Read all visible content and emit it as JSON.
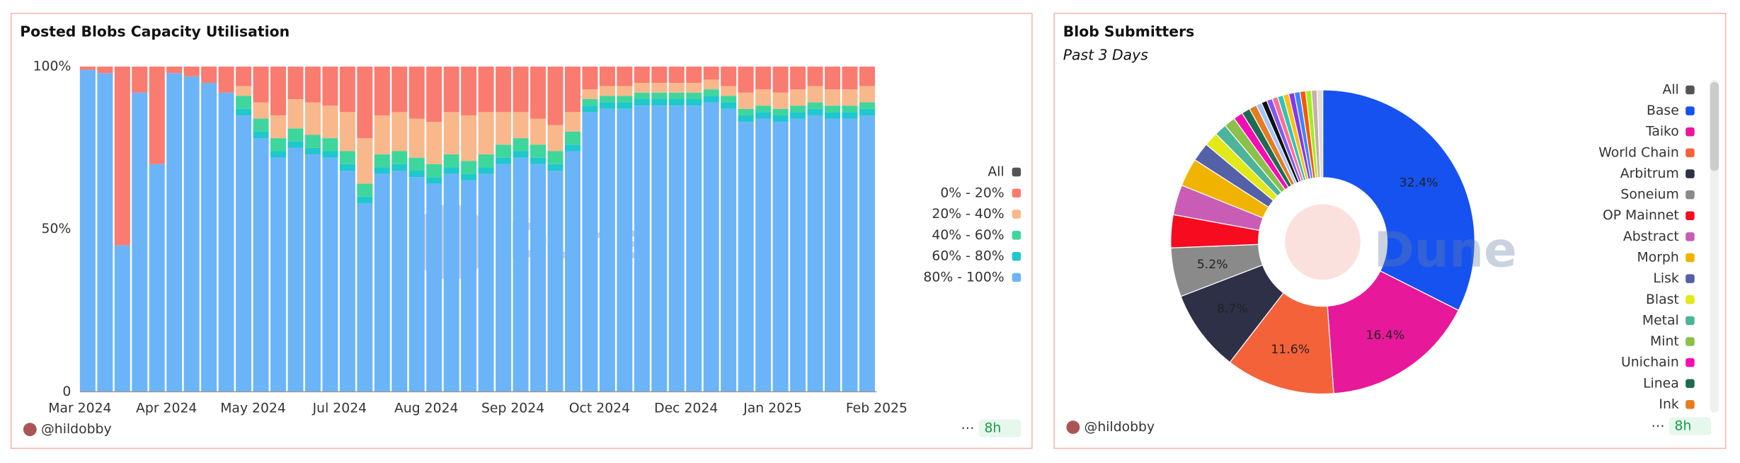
{
  "chart_data": [
    {
      "type": "bar",
      "stacked": true,
      "title": "Posted Blobs Capacity Utilisation",
      "watermark": "Dune",
      "author": "@hildobby",
      "refresh": "8h",
      "legend_all_label": "All",
      "legend_all_color": "#555555",
      "categories": [
        "Mar 2024",
        null,
        null,
        null,
        null,
        "Apr 2024",
        null,
        null,
        null,
        null,
        "May 2024",
        null,
        null,
        null,
        null,
        "Jul 2024",
        null,
        null,
        null,
        null,
        "Aug 2024",
        null,
        null,
        null,
        null,
        "Sep 2024",
        null,
        null,
        null,
        null,
        "Oct 2024",
        null,
        null,
        null,
        null,
        "Dec 2024",
        null,
        null,
        null,
        null,
        "Jan 2025",
        null,
        null,
        null,
        null,
        "Feb 2025"
      ],
      "ylim": [
        0,
        100
      ],
      "yticks": [
        0,
        {
          "value": 50,
          "label": "50%"
        },
        {
          "value": 100,
          "label": "100%"
        }
      ],
      "series": [
        {
          "name": "80% - 100%",
          "color": "#6cb4f8",
          "values": [
            99,
            98,
            45,
            92,
            70,
            98,
            97,
            95,
            92,
            85,
            78,
            72,
            75,
            73,
            72,
            68,
            58,
            67,
            68,
            66,
            64,
            67,
            65,
            67,
            70,
            72,
            70,
            68,
            74,
            86,
            87,
            87,
            88,
            88,
            88,
            88,
            89,
            87,
            83,
            84,
            83,
            84,
            85,
            84,
            84,
            85
          ]
        },
        {
          "name": "60% - 80%",
          "color": "#1fc8cc",
          "values": [
            0,
            0,
            0,
            0,
            0,
            0,
            0,
            0,
            0,
            2,
            2,
            2,
            2,
            2,
            2,
            2,
            2,
            2,
            2,
            2,
            2,
            2,
            2,
            2,
            2,
            2,
            2,
            2,
            2,
            2,
            2,
            2,
            2,
            2,
            2,
            2,
            2,
            2,
            2,
            2,
            2,
            2,
            2,
            2,
            2,
            2
          ]
        },
        {
          "name": "40% - 60%",
          "color": "#3fd69c",
          "values": [
            0,
            0,
            0,
            0,
            0,
            0,
            0,
            0,
            0,
            4,
            4,
            4,
            4,
            4,
            4,
            4,
            4,
            4,
            4,
            4,
            4,
            4,
            4,
            4,
            4,
            4,
            4,
            4,
            4,
            2,
            2,
            2,
            2,
            2,
            2,
            2,
            2,
            2,
            2,
            2,
            2,
            2,
            2,
            2,
            2,
            2
          ]
        },
        {
          "name": "20% - 40%",
          "color": "#f8b88c",
          "values": [
            0,
            0,
            0,
            0,
            0,
            0,
            0,
            0,
            0,
            3,
            5,
            7,
            9,
            10,
            10,
            12,
            14,
            12,
            12,
            12,
            13,
            13,
            14,
            13,
            10,
            8,
            8,
            8,
            6,
            3,
            3,
            3,
            3,
            3,
            3,
            3,
            3,
            3,
            5,
            5,
            5,
            5,
            5,
            5,
            5,
            5
          ]
        },
        {
          "name": "0% - 20%",
          "color": "#fa7b70",
          "values": [
            1,
            2,
            55,
            8,
            30,
            2,
            3,
            5,
            8,
            6,
            11,
            15,
            10,
            11,
            12,
            14,
            22,
            15,
            14,
            16,
            17,
            14,
            15,
            14,
            14,
            14,
            16,
            18,
            14,
            7,
            6,
            6,
            5,
            5,
            5,
            5,
            4,
            6,
            8,
            7,
            8,
            7,
            6,
            7,
            7,
            6
          ]
        }
      ]
    },
    {
      "type": "pie",
      "donut": true,
      "title": "Blob Submitters",
      "subtitle": "Past 3 Days",
      "watermark": "Dune",
      "author": "@hildobby",
      "refresh": "8h",
      "legend_all_label": "All",
      "legend_all_color": "#555555",
      "categories": [
        "Base",
        "Taiko",
        "World Chain",
        "Arbitrum",
        "Soneium",
        "OP Mainnet",
        "Abstract",
        "Morph",
        "Lisk",
        "Blast",
        "Metal",
        "Mint",
        "Unichain",
        "Linea",
        "Ink",
        null,
        null,
        null,
        null,
        null,
        null,
        null,
        null,
        null,
        null,
        null,
        null
      ],
      "values": [
        32.4,
        16.4,
        11.6,
        8.7,
        5.2,
        3.5,
        3.2,
        3.0,
        2.0,
        1.5,
        1.3,
        1.2,
        1.0,
        0.9,
        0.8,
        0.6,
        0.6,
        0.6,
        0.6,
        0.6,
        0.6,
        0.6,
        0.6,
        0.6,
        0.6,
        0.6,
        0.6
      ],
      "value_labels": [
        "32.4%",
        "16.4%",
        "11.6%",
        "8.7%",
        "5.2%",
        null,
        null,
        null,
        null,
        null,
        null,
        null,
        null,
        null,
        null,
        null,
        null,
        null,
        null,
        null,
        null,
        null,
        null,
        null,
        null,
        null,
        null
      ],
      "colors": [
        "#1652f0",
        "#e8189a",
        "#f4623a",
        "#2d3047",
        "#8a8a8a",
        "#f70b1f",
        "#c95db5",
        "#f0b400",
        "#5460a8",
        "#e2e81a",
        "#4db39a",
        "#8cc04a",
        "#f50db4",
        "#1e6b52",
        "#e57c1e",
        "#a0c4ff",
        "#111111",
        "#7f5af0",
        "#ff6f91",
        "#2ec4b6",
        "#ffbe0b",
        "#8338ec",
        "#3a86ff",
        "#fb5607",
        "#9ef01a",
        "#c9ada7",
        "#dddddd"
      ]
    }
  ]
}
